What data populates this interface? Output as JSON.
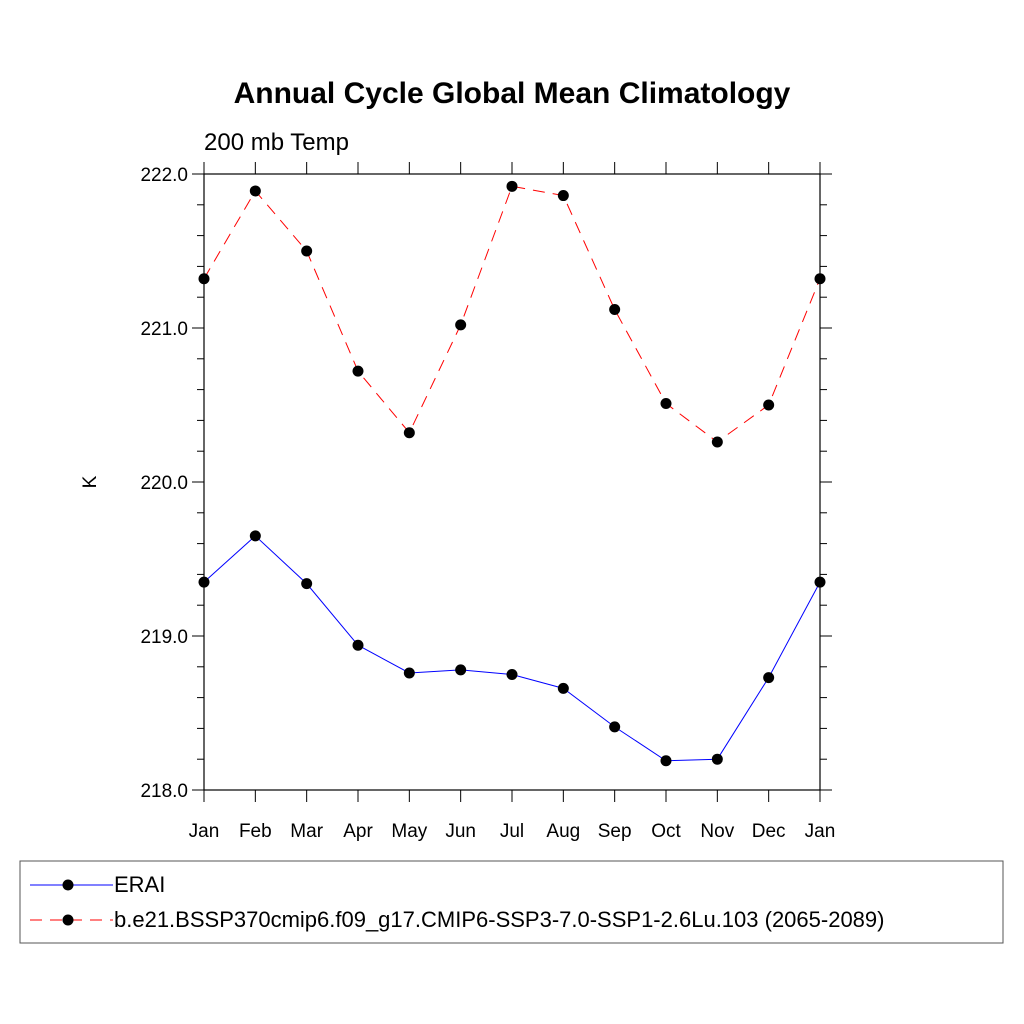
{
  "chart_data": {
    "type": "line",
    "title": "Annual Cycle Global Mean Climatology",
    "subtitle": "200 mb Temp",
    "xlabel": "",
    "ylabel": "K",
    "categories": [
      "Jan",
      "Feb",
      "Mar",
      "Apr",
      "May",
      "Jun",
      "Jul",
      "Aug",
      "Sep",
      "Oct",
      "Nov",
      "Dec",
      "Jan"
    ],
    "ylim": [
      218.0,
      222.0
    ],
    "yticks": [
      "218.0",
      "219.0",
      "220.0",
      "221.0",
      "222.0"
    ],
    "grid": false,
    "legend_position": "bottom",
    "series": [
      {
        "name": "ERAI",
        "color": "#0000ff",
        "line_style": "solid",
        "marker": "filled-circle",
        "values": [
          219.35,
          219.65,
          219.34,
          218.94,
          218.76,
          218.78,
          218.75,
          218.66,
          218.41,
          218.19,
          218.2,
          218.73,
          219.35
        ]
      },
      {
        "name": "b.e21.BSSP370cmip6.f09_g17.CMIP6-SSP3-7.0-SSP1-2.6Lu.103 (2065-2089)",
        "color": "#ff0000",
        "line_style": "dashed",
        "marker": "filled-circle",
        "values": [
          221.32,
          221.89,
          221.5,
          220.72,
          220.32,
          221.02,
          221.92,
          221.86,
          221.12,
          220.51,
          220.26,
          220.5,
          221.32
        ]
      }
    ]
  }
}
